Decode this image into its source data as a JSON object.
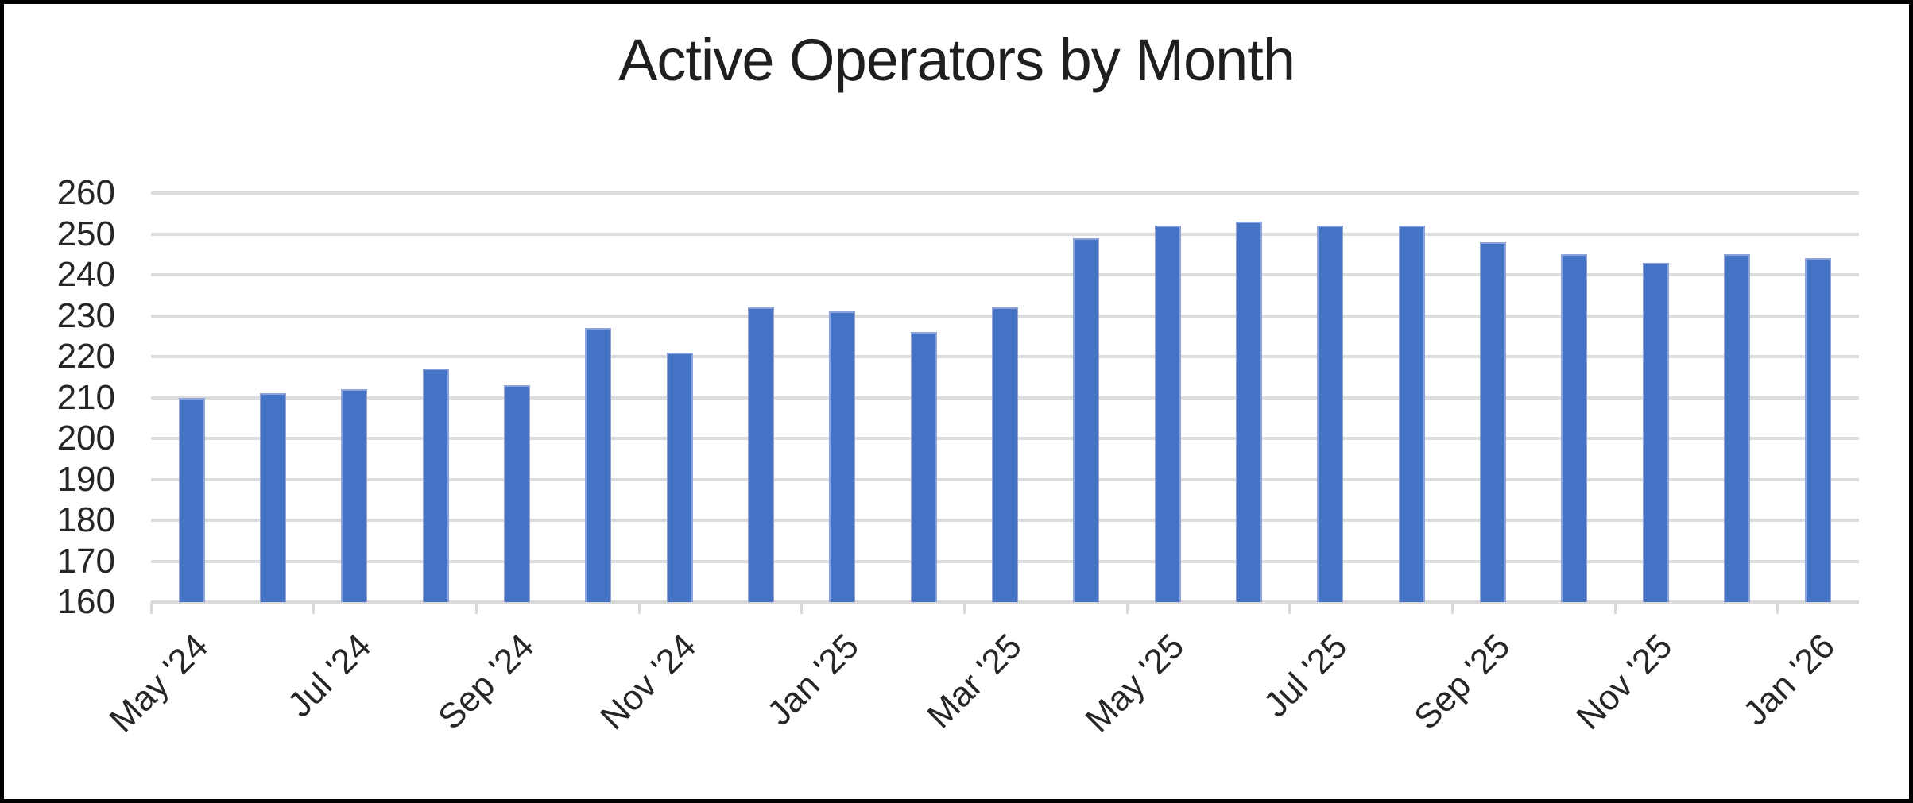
{
  "chart_data": {
    "type": "bar",
    "title": "Active Operators by Month",
    "xlabel": "",
    "ylabel": "",
    "values": [
      210,
      211,
      212,
      217,
      213,
      227,
      221,
      232,
      231,
      226,
      232,
      249,
      252,
      253,
      252,
      252,
      248,
      245,
      243,
      245,
      244
    ],
    "x_tick_labels": [
      "May '24",
      "Jul '24",
      "Sep '24",
      "Nov '24",
      "Jan '25",
      "Mar '25",
      "May '25",
      "Jul '25",
      "Sep '25",
      "Nov '25",
      "Jan '26"
    ],
    "x_label_interval": 2,
    "y_tick_labels": [
      "160",
      "170",
      "180",
      "190",
      "200",
      "210",
      "220",
      "230",
      "240",
      "250",
      "260"
    ],
    "ylim": [
      160,
      260
    ],
    "ytick_step": 10,
    "grid": true,
    "legend_position": "none",
    "bar_color": "#4472C4",
    "bar_border_color": "#8CA3D9",
    "gridline_color": "#DCDCDC",
    "axis_color": "#D9D9D9",
    "title_color": "#1f1f1f",
    "tick_label_color": "#262626",
    "frame_border_color": "#000000"
  }
}
